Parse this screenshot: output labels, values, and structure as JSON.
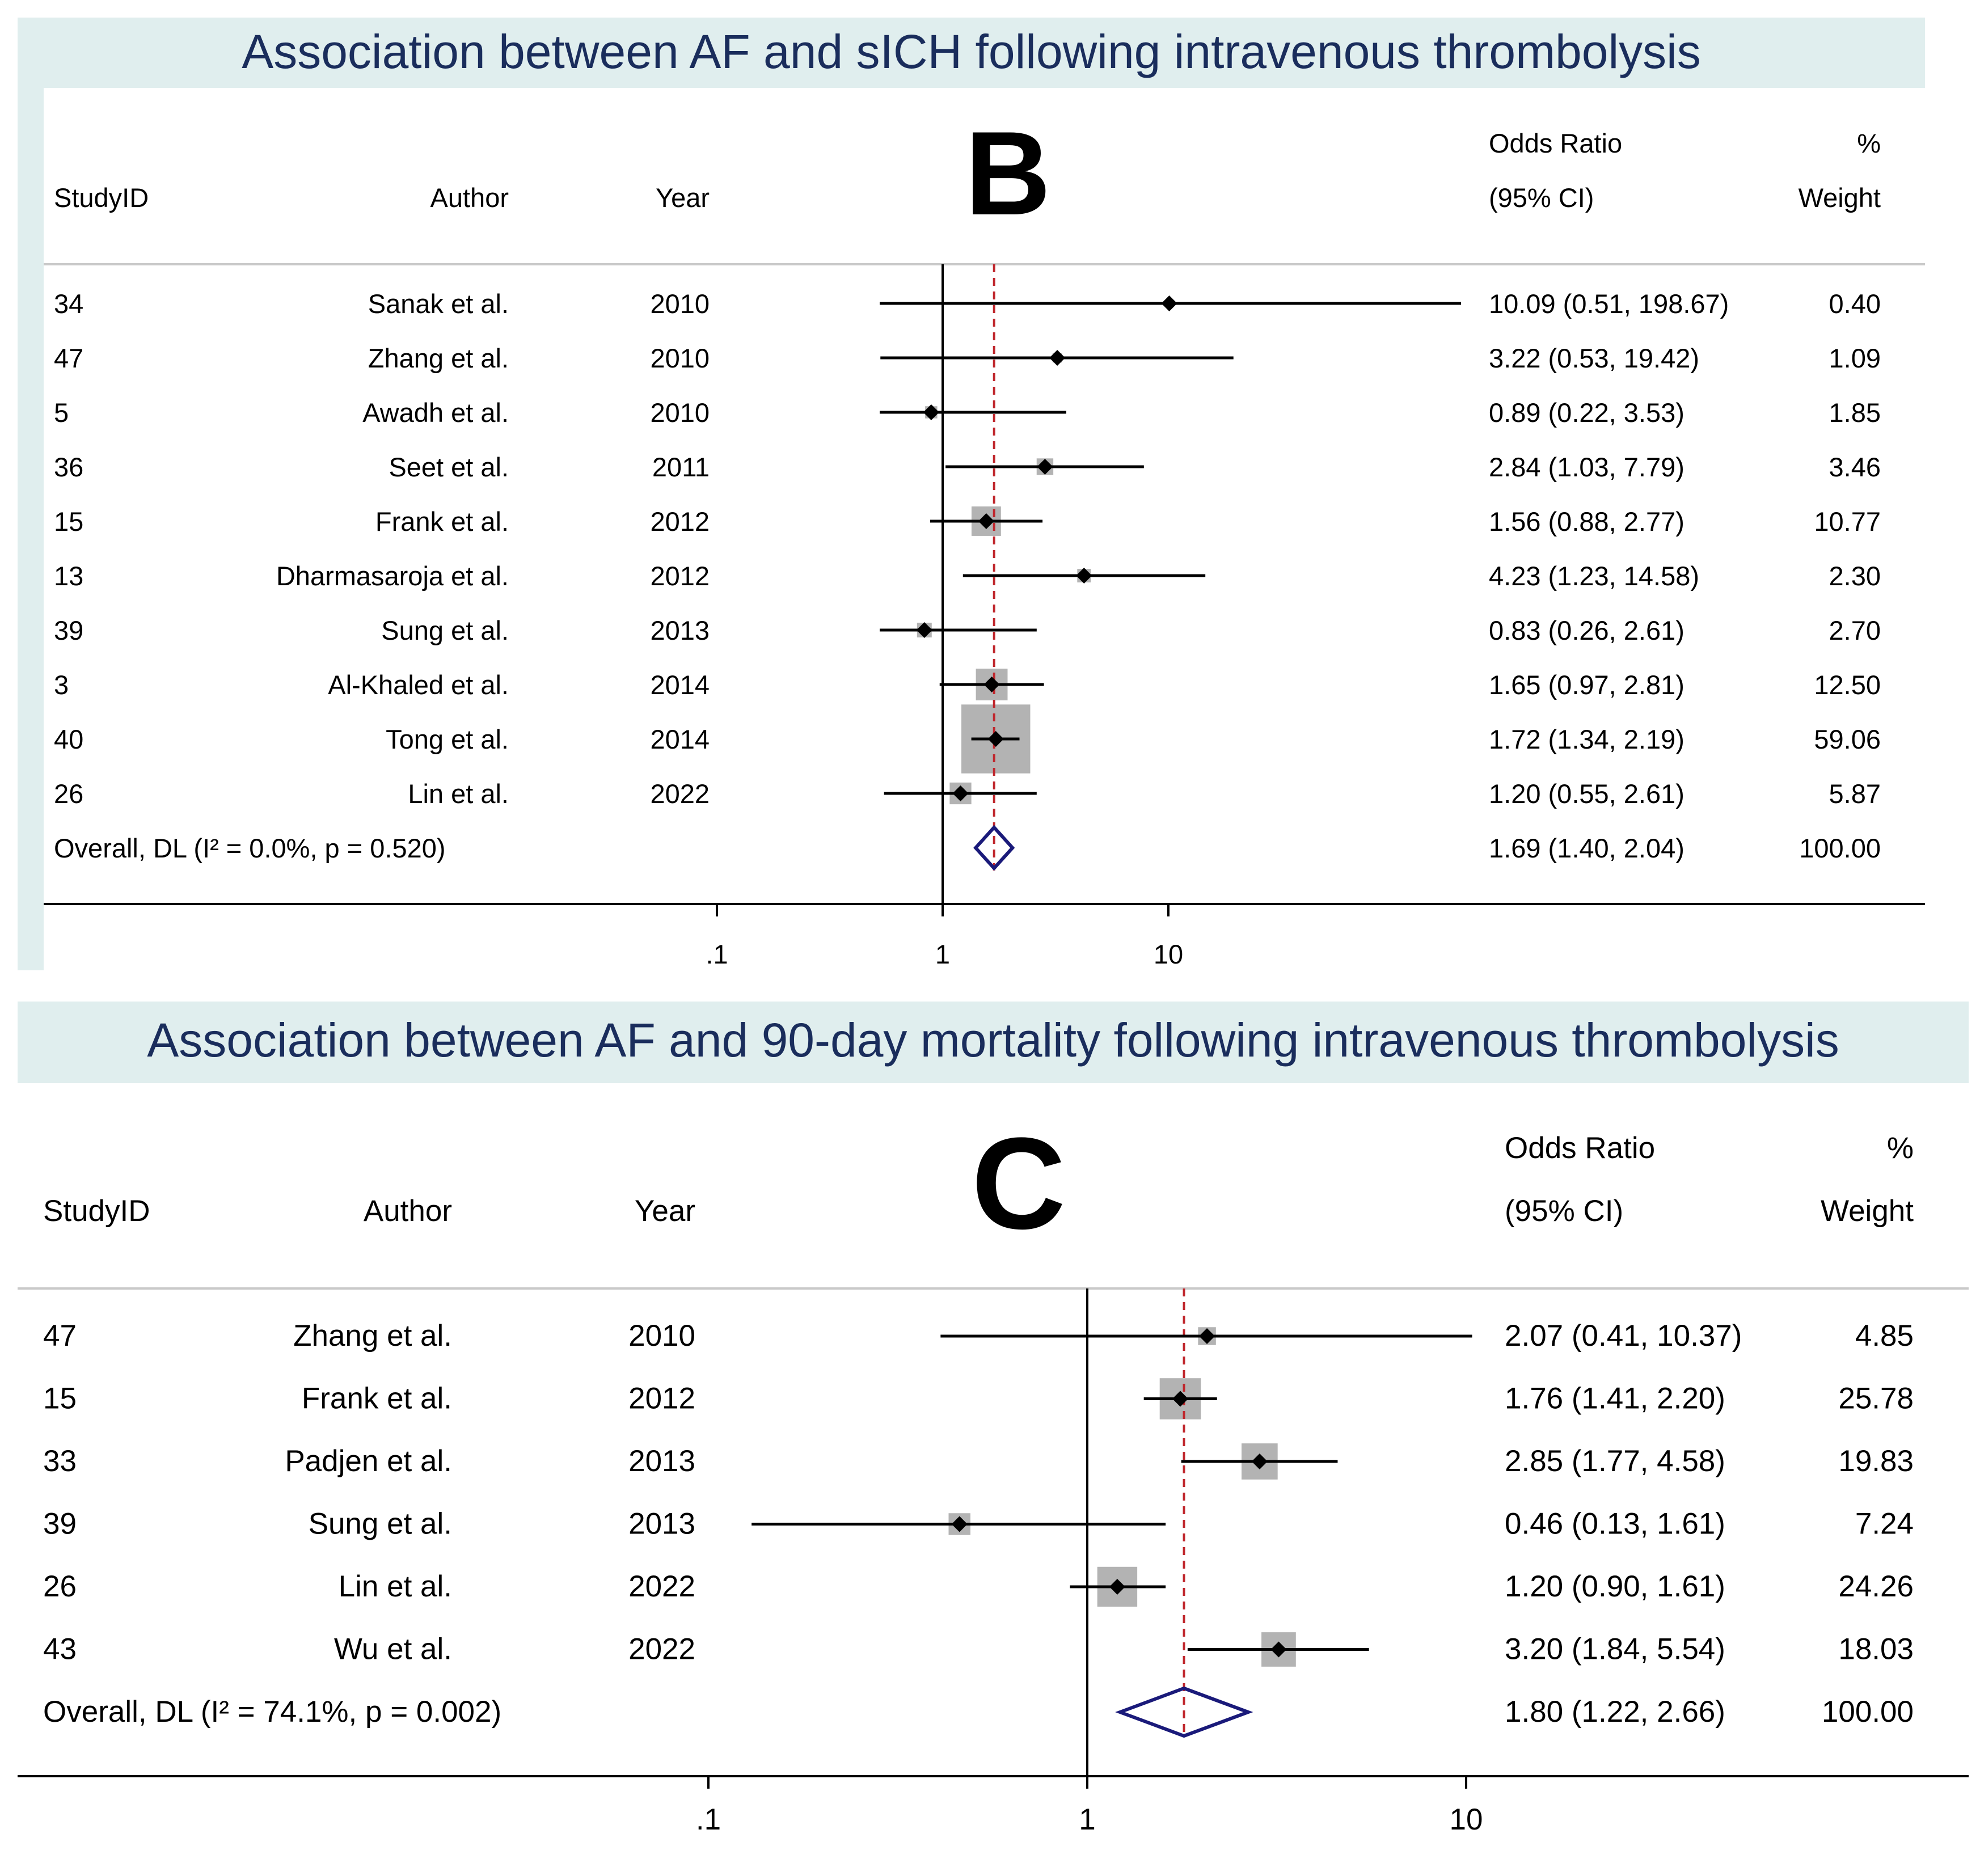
{
  "panels": {
    "b": {
      "title": "Association between AF and sICH following intravenous thrombolysis"
    },
    "c": {
      "title": "Association between AF and 90-day mortality following intravenous thrombolysis"
    }
  },
  "colors": {
    "panel_bg": "#e0eeee",
    "title": "#1a2d5c",
    "reference_line": "#c0272d",
    "overall_diamond": "#1a1a7a",
    "weight_box": "#b3b3b3"
  },
  "chart_data": [
    {
      "type": "forest",
      "panel_letter": "B",
      "columns": {
        "studyid": "StudyID",
        "author": "Author",
        "year": "Year",
        "or_line1": "Odds Ratio",
        "or_line2": "(95% CI)",
        "weight_line1": "%",
        "weight_line2": "Weight"
      },
      "x_scale": "log",
      "x_ticks": [
        ".1",
        "1",
        "10"
      ],
      "x_tick_values": [
        0.1,
        1,
        10
      ],
      "null_line": 1,
      "pooled_line": 1.69,
      "studies": [
        {
          "id": "34",
          "author": "Sanak et al.",
          "year": "2010",
          "or": 10.09,
          "lo": 0.51,
          "hi": 198.67,
          "or_text": "10.09 (0.51, 198.67)",
          "weight": 0.4,
          "weight_text": "0.40"
        },
        {
          "id": "47",
          "author": "Zhang et al.",
          "year": "2010",
          "or": 3.22,
          "lo": 0.53,
          "hi": 19.42,
          "or_text": "3.22 (0.53, 19.42)",
          "weight": 1.09,
          "weight_text": "1.09"
        },
        {
          "id": "5",
          "author": "Awadh et al.",
          "year": "2010",
          "or": 0.89,
          "lo": 0.22,
          "hi": 3.53,
          "or_text": "0.89 (0.22, 3.53)",
          "weight": 1.85,
          "weight_text": "1.85"
        },
        {
          "id": "36",
          "author": "Seet et al.",
          "year": "2011",
          "or": 2.84,
          "lo": 1.03,
          "hi": 7.79,
          "or_text": "2.84 (1.03, 7.79)",
          "weight": 3.46,
          "weight_text": "3.46"
        },
        {
          "id": "15",
          "author": "Frank et al.",
          "year": "2012",
          "or": 1.56,
          "lo": 0.88,
          "hi": 2.77,
          "or_text": "1.56 (0.88, 2.77)",
          "weight": 10.77,
          "weight_text": "10.77"
        },
        {
          "id": "13",
          "author": "Dharmasaroja et al.",
          "year": "2012",
          "or": 4.23,
          "lo": 1.23,
          "hi": 14.58,
          "or_text": "4.23 (1.23, 14.58)",
          "weight": 2.3,
          "weight_text": "2.30"
        },
        {
          "id": "39",
          "author": "Sung et al.",
          "year": "2013",
          "or": 0.83,
          "lo": 0.26,
          "hi": 2.61,
          "or_text": "0.83 (0.26, 2.61)",
          "weight": 2.7,
          "weight_text": "2.70"
        },
        {
          "id": "3",
          "author": "Al-Khaled et al.",
          "year": "2014",
          "or": 1.65,
          "lo": 0.97,
          "hi": 2.81,
          "or_text": "1.65 (0.97, 2.81)",
          "weight": 12.5,
          "weight_text": "12.50"
        },
        {
          "id": "40",
          "author": "Tong et al.",
          "year": "2014",
          "or": 1.72,
          "lo": 1.34,
          "hi": 2.19,
          "or_text": "1.72 (1.34, 2.19)",
          "weight": 59.06,
          "weight_text": "59.06"
        },
        {
          "id": "26",
          "author": "Lin et al.",
          "year": "2022",
          "or": 1.2,
          "lo": 0.55,
          "hi": 2.61,
          "or_text": "1.20 (0.55, 2.61)",
          "weight": 5.87,
          "weight_text": "5.87"
        }
      ],
      "overall": {
        "label": "Overall, DL (I² = 0.0%, p = 0.520)",
        "or": 1.69,
        "lo": 1.4,
        "hi": 2.04,
        "or_text": "1.69 (1.40, 2.04)",
        "weight_text": "100.00"
      }
    },
    {
      "type": "forest",
      "panel_letter": "C",
      "columns": {
        "studyid": "StudyID",
        "author": "Author",
        "year": "Year",
        "or_line1": "Odds Ratio",
        "or_line2": "(95% CI)",
        "weight_line1": "%",
        "weight_line2": "Weight"
      },
      "x_scale": "log",
      "x_ticks": [
        ".1",
        "1",
        "10"
      ],
      "x_tick_values": [
        0.1,
        1,
        10
      ],
      "null_line": 1,
      "pooled_line": 1.8,
      "studies": [
        {
          "id": "47",
          "author": "Zhang et al.",
          "year": "2010",
          "or": 2.07,
          "lo": 0.41,
          "hi": 10.37,
          "or_text": "2.07 (0.41, 10.37)",
          "weight": 4.85,
          "weight_text": "4.85"
        },
        {
          "id": "15",
          "author": "Frank et al.",
          "year": "2012",
          "or": 1.76,
          "lo": 1.41,
          "hi": 2.2,
          "or_text": "1.76 (1.41, 2.20)",
          "weight": 25.78,
          "weight_text": "25.78"
        },
        {
          "id": "33",
          "author": "Padjen et al.",
          "year": "2013",
          "or": 2.85,
          "lo": 1.77,
          "hi": 4.58,
          "or_text": "2.85 (1.77, 4.58)",
          "weight": 19.83,
          "weight_text": "19.83"
        },
        {
          "id": "39",
          "author": "Sung et al.",
          "year": "2013",
          "or": 0.46,
          "lo": 0.13,
          "hi": 1.61,
          "or_text": "0.46 (0.13, 1.61)",
          "weight": 7.24,
          "weight_text": "7.24"
        },
        {
          "id": "26",
          "author": "Lin et al.",
          "year": "2022",
          "or": 1.2,
          "lo": 0.9,
          "hi": 1.61,
          "or_text": "1.20 (0.90, 1.61)",
          "weight": 24.26,
          "weight_text": "24.26"
        },
        {
          "id": "43",
          "author": "Wu et al.",
          "year": "2022",
          "or": 3.2,
          "lo": 1.84,
          "hi": 5.54,
          "or_text": "3.20 (1.84, 5.54)",
          "weight": 18.03,
          "weight_text": "18.03"
        }
      ],
      "overall": {
        "label": "Overall, DL (I² = 74.1%, p = 0.002)",
        "or": 1.8,
        "lo": 1.22,
        "hi": 2.66,
        "or_text": "1.80 (1.22, 2.66)",
        "weight_text": "100.00"
      }
    }
  ]
}
